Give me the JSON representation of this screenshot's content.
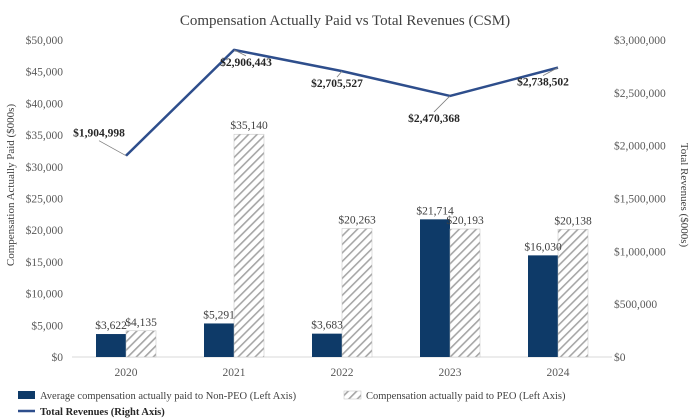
{
  "chart_data": {
    "type": "bar+line",
    "title": "Compensation Actually Paid vs Total Revenues (CSM)",
    "categories": [
      "2020",
      "2021",
      "2022",
      "2023",
      "2024"
    ],
    "ylabel_left": "Compensation Actually Paid ($000s)",
    "ylabel_right": "Total Revenues ($000s)",
    "ylim_left": [
      0,
      50000
    ],
    "ylim_right": [
      0,
      3000000
    ],
    "yticks_left": [
      "$0",
      "$5,000",
      "$10,000",
      "$15,000",
      "$20,000",
      "$25,000",
      "$30,000",
      "$35,000",
      "$40,000",
      "$45,000",
      "$50,000"
    ],
    "yticks_right": [
      "$0",
      "$500,000",
      "$1,000,000",
      "$1,500,000",
      "$2,000,000",
      "$2,500,000",
      "$3,000,000"
    ],
    "series": [
      {
        "name": "Average compensation actually paid to Non-PEO (Left Axis)",
        "kind": "bar",
        "axis": "left",
        "color": "#0e3a68",
        "values": [
          3622,
          5291,
          3683,
          21714,
          16030
        ],
        "labels": [
          "$3,622",
          "$5,291",
          "$3,683",
          "$21,714",
          "$16,030"
        ]
      },
      {
        "name": "Compensation actually paid to PEO (Left Axis)",
        "kind": "bar-hatched",
        "axis": "left",
        "color": "#a6a6a6",
        "values": [
          4135,
          35140,
          20263,
          20193,
          20138
        ],
        "labels": [
          "$4,135",
          "$35,140",
          "$20,263",
          "$20,193",
          "$20,138"
        ]
      },
      {
        "name": "Total Revenues (Right Axis)",
        "kind": "line",
        "axis": "right",
        "color": "#2e4e8c",
        "values": [
          1904998,
          2906443,
          2705527,
          2470368,
          2738502
        ],
        "labels": [
          "$1,904,998",
          "$2,906,443",
          "$2,705,527",
          "$2,470,368",
          "$2,738,502"
        ]
      }
    ],
    "legend_position": "bottom"
  }
}
